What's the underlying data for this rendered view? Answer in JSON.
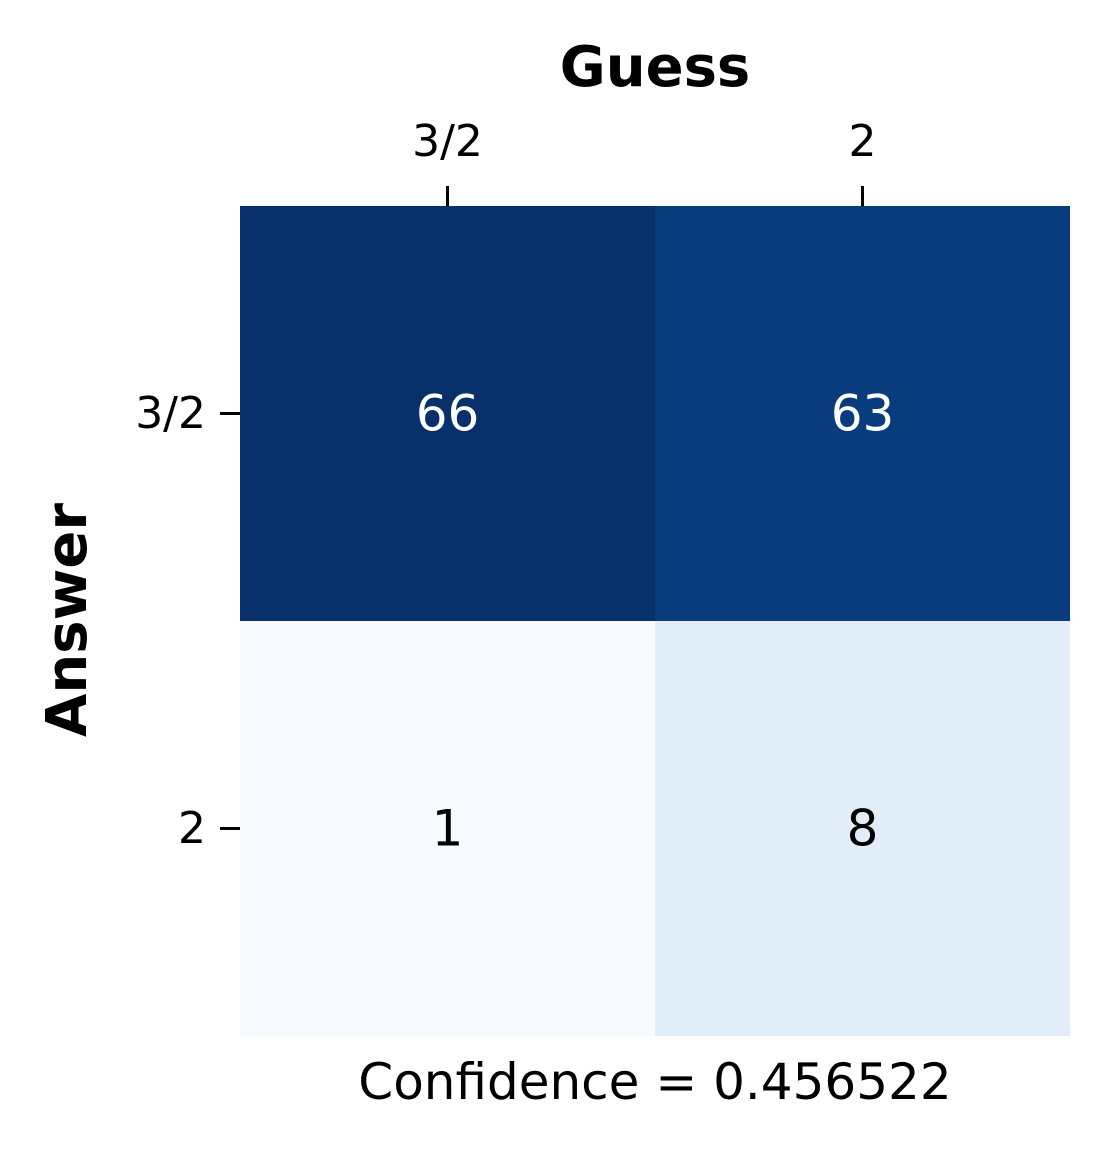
{
  "chart_data": {
    "type": "heatmap",
    "title": "",
    "xlabel": "Guess",
    "ylabel": "Answer",
    "x_categories": [
      "3/2",
      "2"
    ],
    "y_categories": [
      "3/2",
      "2"
    ],
    "values": [
      [
        66,
        63
      ],
      [
        1,
        8
      ]
    ],
    "colormap": "Blues",
    "value_range": [
      1,
      66
    ],
    "colorbar": false,
    "footer": "Confidence = 0.456522",
    "grid": false
  }
}
